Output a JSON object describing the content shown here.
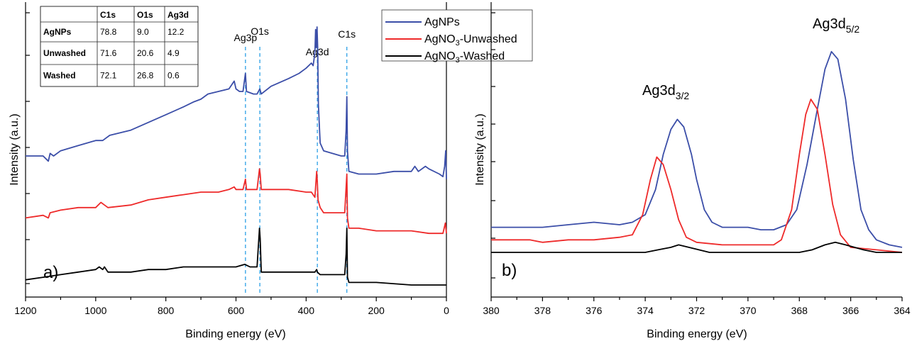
{
  "legend": [
    {
      "label": "AgNPs",
      "color": "#3b4ea8"
    },
    {
      "label": "AgNO3-Unwashed",
      "base": "AgNO",
      "sub": "3",
      "rest": "-Unwashed",
      "color": "#ee2a2a"
    },
    {
      "label": "AgNO3-Washed",
      "base": "AgNO",
      "sub": "3",
      "rest": "-Washed",
      "color": "#000000"
    }
  ],
  "table": {
    "headers": [
      "",
      "C1s",
      "O1s",
      "Ag3d"
    ],
    "rows": [
      {
        "sample": "AgNPs",
        "values": [
          "78.8",
          "9.0",
          "12.2"
        ]
      },
      {
        "sample": "Unwashed",
        "values": [
          "71.6",
          "20.6",
          "4.9"
        ]
      },
      {
        "sample": "Washed",
        "values": [
          "72.1",
          "26.8",
          "0.6"
        ]
      }
    ]
  },
  "chart_data": [
    {
      "type": "line",
      "panel_label": "a)",
      "xlabel": "Binding energy (eV)",
      "ylabel": "Intensity (a.u.)",
      "xlim": [
        1200,
        0
      ],
      "x_ticks": [
        1200,
        1000,
        800,
        600,
        400,
        200,
        0
      ],
      "reference_lines": [
        {
          "label": "Ag3p",
          "x": 573
        },
        {
          "label": "O1s",
          "x": 532
        },
        {
          "label": "Ag3d",
          "x": 368
        },
        {
          "label": "C1s",
          "x": 284
        }
      ],
      "series": [
        {
          "name": "AgNPs",
          "color": "#3b4ea8",
          "points": [
            [
              1200,
              0.5
            ],
            [
              1150,
              0.5
            ],
            [
              1135,
              0.48
            ],
            [
              1130,
              0.51
            ],
            [
              1120,
              0.5
            ],
            [
              1100,
              0.52
            ],
            [
              1050,
              0.54
            ],
            [
              1000,
              0.56
            ],
            [
              980,
              0.56
            ],
            [
              960,
              0.58
            ],
            [
              900,
              0.6
            ],
            [
              850,
              0.63
            ],
            [
              800,
              0.66
            ],
            [
              750,
              0.69
            ],
            [
              720,
              0.71
            ],
            [
              700,
              0.72
            ],
            [
              680,
              0.74
            ],
            [
              650,
              0.75
            ],
            [
              620,
              0.76
            ],
            [
              605,
              0.79
            ],
            [
              600,
              0.76
            ],
            [
              590,
              0.75
            ],
            [
              580,
              0.75
            ],
            [
              573,
              0.82
            ],
            [
              570,
              0.75
            ],
            [
              550,
              0.74
            ],
            [
              540,
              0.74
            ],
            [
              532,
              0.76
            ],
            [
              528,
              0.74
            ],
            [
              500,
              0.77
            ],
            [
              450,
              0.8
            ],
            [
              420,
              0.82
            ],
            [
              400,
              0.84
            ],
            [
              385,
              0.86
            ],
            [
              380,
              0.85
            ],
            [
              375,
              0.9
            ],
            [
              373,
              0.99
            ],
            [
              371,
              0.92
            ],
            [
              369,
              1.0
            ],
            [
              367,
              0.92
            ],
            [
              365,
              0.7
            ],
            [
              360,
              0.55
            ],
            [
              350,
              0.52
            ],
            [
              300,
              0.5
            ],
            [
              290,
              0.5
            ],
            [
              286,
              0.6
            ],
            [
              284,
              0.73
            ],
            [
              282,
              0.52
            ],
            [
              278,
              0.44
            ],
            [
              250,
              0.43
            ],
            [
              200,
              0.43
            ],
            [
              150,
              0.44
            ],
            [
              100,
              0.44
            ],
            [
              90,
              0.46
            ],
            [
              80,
              0.44
            ],
            [
              60,
              0.46
            ],
            [
              50,
              0.45
            ],
            [
              20,
              0.43
            ],
            [
              10,
              0.42
            ],
            [
              5,
              0.46
            ],
            [
              2,
              0.52
            ],
            [
              0,
              0.41
            ]
          ]
        },
        {
          "name": "AgNO3-Unwashed",
          "color": "#ee2a2a",
          "points": [
            [
              1200,
              0.26
            ],
            [
              1150,
              0.27
            ],
            [
              1135,
              0.26
            ],
            [
              1130,
              0.28
            ],
            [
              1100,
              0.29
            ],
            [
              1050,
              0.3
            ],
            [
              1000,
              0.3
            ],
            [
              985,
              0.32
            ],
            [
              975,
              0.31
            ],
            [
              965,
              0.3
            ],
            [
              900,
              0.31
            ],
            [
              850,
              0.33
            ],
            [
              800,
              0.34
            ],
            [
              750,
              0.35
            ],
            [
              700,
              0.36
            ],
            [
              650,
              0.36
            ],
            [
              620,
              0.37
            ],
            [
              605,
              0.38
            ],
            [
              600,
              0.37
            ],
            [
              580,
              0.37
            ],
            [
              573,
              0.41
            ],
            [
              570,
              0.37
            ],
            [
              540,
              0.37
            ],
            [
              533,
              0.45
            ],
            [
              531,
              0.43
            ],
            [
              528,
              0.37
            ],
            [
              500,
              0.37
            ],
            [
              450,
              0.37
            ],
            [
              400,
              0.36
            ],
            [
              385,
              0.36
            ],
            [
              375,
              0.34
            ],
            [
              372,
              0.4
            ],
            [
              370,
              0.44
            ],
            [
              368,
              0.4
            ],
            [
              366,
              0.33
            ],
            [
              360,
              0.3
            ],
            [
              350,
              0.28
            ],
            [
              300,
              0.28
            ],
            [
              290,
              0.28
            ],
            [
              286,
              0.38
            ],
            [
              284,
              0.43
            ],
            [
              282,
              0.26
            ],
            [
              278,
              0.22
            ],
            [
              250,
              0.22
            ],
            [
              200,
              0.21
            ],
            [
              150,
              0.21
            ],
            [
              100,
              0.21
            ],
            [
              50,
              0.2
            ],
            [
              10,
              0.2
            ],
            [
              3,
              0.24
            ],
            [
              0,
              0.2
            ]
          ]
        },
        {
          "name": "AgNO3-Washed",
          "color": "#000000",
          "points": [
            [
              1200,
              0.02
            ],
            [
              1150,
              0.03
            ],
            [
              1100,
              0.04
            ],
            [
              1050,
              0.05
            ],
            [
              1000,
              0.06
            ],
            [
              990,
              0.07
            ],
            [
              980,
              0.06
            ],
            [
              975,
              0.07
            ],
            [
              965,
              0.05
            ],
            [
              900,
              0.05
            ],
            [
              850,
              0.06
            ],
            [
              800,
              0.06
            ],
            [
              750,
              0.07
            ],
            [
              700,
              0.07
            ],
            [
              650,
              0.07
            ],
            [
              600,
              0.07
            ],
            [
              575,
              0.08
            ],
            [
              560,
              0.07
            ],
            [
              540,
              0.07
            ],
            [
              533,
              0.22
            ],
            [
              531,
              0.18
            ],
            [
              528,
              0.05
            ],
            [
              500,
              0.05
            ],
            [
              450,
              0.05
            ],
            [
              400,
              0.05
            ],
            [
              375,
              0.05
            ],
            [
              370,
              0.06
            ],
            [
              368,
              0.05
            ],
            [
              360,
              0.04
            ],
            [
              300,
              0.04
            ],
            [
              290,
              0.04
            ],
            [
              286,
              0.12
            ],
            [
              284,
              0.22
            ],
            [
              282,
              0.03
            ],
            [
              278,
              0.01
            ],
            [
              250,
              0.01
            ],
            [
              200,
              0.01
            ],
            [
              100,
              0.0
            ],
            [
              50,
              0.0
            ],
            [
              0,
              0.0
            ]
          ]
        }
      ]
    },
    {
      "type": "line",
      "panel_label": "b)",
      "xlabel": "Binding energy (eV)",
      "ylabel": "Intensity (a.u.)",
      "xlim": [
        380,
        364
      ],
      "x_ticks": [
        380,
        378,
        376,
        374,
        372,
        370,
        368,
        366,
        364
      ],
      "annotations": [
        {
          "base": "Ag3d",
          "sub": "3/2"
        },
        {
          "base": "Ag3d",
          "sub": "5/2"
        }
      ],
      "series": [
        {
          "name": "AgNPs",
          "color": "#3b4ea8",
          "points": [
            [
              380,
              0.23
            ],
            [
              378,
              0.23
            ],
            [
              377,
              0.24
            ],
            [
              376,
              0.25
            ],
            [
              375,
              0.24
            ],
            [
              374.5,
              0.25
            ],
            [
              374,
              0.28
            ],
            [
              373.6,
              0.38
            ],
            [
              373.3,
              0.52
            ],
            [
              373,
              0.62
            ],
            [
              372.75,
              0.66
            ],
            [
              372.5,
              0.63
            ],
            [
              372.2,
              0.52
            ],
            [
              372,
              0.42
            ],
            [
              371.7,
              0.3
            ],
            [
              371.4,
              0.25
            ],
            [
              371,
              0.23
            ],
            [
              370.5,
              0.23
            ],
            [
              370,
              0.23
            ],
            [
              369.5,
              0.22
            ],
            [
              369,
              0.22
            ],
            [
              368.5,
              0.24
            ],
            [
              368.1,
              0.3
            ],
            [
              367.7,
              0.48
            ],
            [
              367.3,
              0.7
            ],
            [
              367,
              0.86
            ],
            [
              366.75,
              0.93
            ],
            [
              366.5,
              0.9
            ],
            [
              366.2,
              0.74
            ],
            [
              365.9,
              0.5
            ],
            [
              365.6,
              0.3
            ],
            [
              365.3,
              0.22
            ],
            [
              365,
              0.18
            ],
            [
              364.5,
              0.16
            ],
            [
              364,
              0.15
            ]
          ]
        },
        {
          "name": "AgNO3-Unwashed",
          "color": "#ee2a2a",
          "points": [
            [
              380,
              0.18
            ],
            [
              379.8,
              0.18
            ],
            [
              378.5,
              0.18
            ],
            [
              378,
              0.17
            ],
            [
              377,
              0.18
            ],
            [
              376,
              0.18
            ],
            [
              375,
              0.19
            ],
            [
              374.5,
              0.2
            ],
            [
              374.1,
              0.28
            ],
            [
              373.8,
              0.42
            ],
            [
              373.55,
              0.51
            ],
            [
              373.3,
              0.48
            ],
            [
              373.0,
              0.38
            ],
            [
              372.7,
              0.26
            ],
            [
              372.4,
              0.19
            ],
            [
              372,
              0.17
            ],
            [
              371,
              0.16
            ],
            [
              370,
              0.16
            ],
            [
              369,
              0.16
            ],
            [
              368.7,
              0.18
            ],
            [
              368.3,
              0.3
            ],
            [
              368,
              0.52
            ],
            [
              367.75,
              0.68
            ],
            [
              367.55,
              0.74
            ],
            [
              367.3,
              0.7
            ],
            [
              367.0,
              0.52
            ],
            [
              366.7,
              0.32
            ],
            [
              366.4,
              0.2
            ],
            [
              366,
              0.15
            ],
            [
              365,
              0.14
            ],
            [
              364,
              0.13
            ]
          ]
        },
        {
          "name": "AgNO3-Washed",
          "color": "#000000",
          "points": [
            [
              380,
              0.13
            ],
            [
              378,
              0.13
            ],
            [
              376,
              0.13
            ],
            [
              375,
              0.13
            ],
            [
              374,
              0.13
            ],
            [
              373.5,
              0.14
            ],
            [
              373,
              0.15
            ],
            [
              372.7,
              0.16
            ],
            [
              372.3,
              0.15
            ],
            [
              371.5,
              0.13
            ],
            [
              370,
              0.13
            ],
            [
              369,
              0.13
            ],
            [
              368,
              0.13
            ],
            [
              367.5,
              0.14
            ],
            [
              367,
              0.16
            ],
            [
              366.6,
              0.17
            ],
            [
              366.2,
              0.16
            ],
            [
              365.5,
              0.14
            ],
            [
              365,
              0.13
            ],
            [
              364,
              0.13
            ]
          ]
        }
      ]
    }
  ]
}
